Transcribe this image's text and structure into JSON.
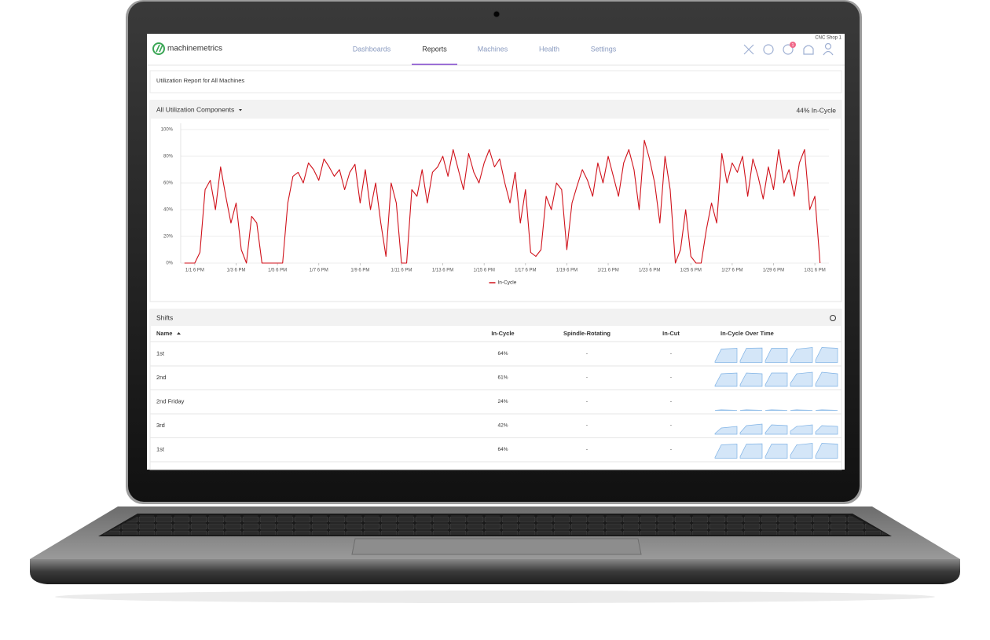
{
  "header": {
    "logo": "machinemetrics",
    "nav": [
      "Dashboards",
      "Reports",
      "Machines",
      "Health",
      "Settings"
    ],
    "account": "CNC Shop 1",
    "notifications": "1"
  },
  "report_title": "Utilization Report for All Machines",
  "panel": {
    "selector": "All Utilization Components",
    "summary": "44% In-Cycle"
  },
  "chart_data": {
    "type": "line",
    "x": [
      1.25,
      1.5,
      1.75,
      2,
      2.25,
      2.5,
      2.75,
      3,
      3.25,
      3.5,
      3.75,
      4,
      4.25,
      4.5,
      4.75,
      5,
      5.25,
      5.5,
      5.75,
      6,
      6.25,
      6.5,
      6.75,
      7,
      7.25,
      7.5,
      7.75,
      8,
      8.25,
      8.5,
      8.75,
      9,
      9.25,
      9.5,
      9.75,
      10,
      10.25,
      10.5,
      10.75,
      11,
      11.25,
      11.5,
      11.75,
      12,
      12.25,
      12.5,
      12.75,
      13,
      13.25,
      13.5,
      13.75,
      14,
      14.25,
      14.5,
      14.75,
      15,
      15.25,
      15.5,
      15.75,
      16,
      16.25,
      16.5,
      16.75,
      17,
      17.25,
      17.5,
      17.75,
      18,
      18.25,
      18.5,
      18.75,
      19,
      19.25,
      19.5,
      19.75,
      20,
      20.25,
      20.5,
      20.75,
      21,
      21.25,
      21.5,
      21.75,
      22,
      22.25,
      22.5,
      22.75,
      23,
      23.25,
      23.5,
      23.75,
      24,
      24.25,
      24.5,
      24.75,
      25,
      25.25,
      25.5,
      25.75,
      26,
      26.25,
      26.5,
      26.75,
      27,
      27.25,
      27.5,
      27.75,
      28,
      28.25,
      28.5,
      28.75,
      29,
      29.25,
      29.5,
      29.75,
      30,
      30.25,
      30.5,
      30.75,
      31,
      31.25,
      31.5,
      31.75,
      32
    ],
    "series": [
      {
        "name": "In-Cycle",
        "color": "#d0121b",
        "values": [
          0,
          0,
          0,
          8,
          55,
          62,
          40,
          72,
          50,
          30,
          45,
          10,
          0,
          35,
          30,
          0,
          0,
          0,
          0,
          0,
          45,
          65,
          68,
          60,
          75,
          70,
          62,
          78,
          72,
          65,
          70,
          55,
          68,
          74,
          45,
          70,
          40,
          60,
          30,
          5,
          60,
          45,
          0,
          0,
          55,
          50,
          70,
          45,
          68,
          72,
          80,
          65,
          85,
          70,
          55,
          82,
          68,
          60,
          75,
          85,
          72,
          78,
          60,
          45,
          68,
          30,
          55,
          8,
          5,
          10,
          50,
          40,
          60,
          55,
          10,
          45,
          58,
          70,
          62,
          50,
          75,
          60,
          80,
          65,
          50,
          75,
          85,
          70,
          40,
          92,
          78,
          60,
          30,
          80,
          55,
          0,
          10,
          40,
          5,
          0,
          0,
          25,
          45,
          30,
          82,
          60,
          75,
          68,
          80,
          50,
          78,
          65,
          48,
          72,
          55,
          85,
          60,
          70,
          50,
          75,
          85,
          40,
          50,
          0
        ]
      }
    ],
    "xlim": [
      1.07,
      32.43
    ],
    "ylim": [
      0,
      100
    ],
    "yticks": [
      {
        "value": 0,
        "label": "0%"
      },
      {
        "value": 20,
        "label": "20%"
      },
      {
        "value": 40,
        "label": "40%"
      },
      {
        "value": 60,
        "label": "60%"
      },
      {
        "value": 80,
        "label": "80%"
      },
      {
        "value": 100,
        "label": "100%"
      }
    ],
    "xticks": [
      {
        "value": 1.75,
        "label": "1/1 6 PM"
      },
      {
        "value": 3.75,
        "label": "1/3 6 PM"
      },
      {
        "value": 5.75,
        "label": "1/5 6 PM"
      },
      {
        "value": 7.75,
        "label": "1/7 6 PM"
      },
      {
        "value": 9.75,
        "label": "1/9 6 PM"
      },
      {
        "value": 11.75,
        "label": "1/11 6 PM"
      },
      {
        "value": 13.75,
        "label": "1/13 6 PM"
      },
      {
        "value": 15.75,
        "label": "1/15 6 PM"
      },
      {
        "value": 17.75,
        "label": "1/17 6 PM"
      },
      {
        "value": 19.75,
        "label": "1/19 6 PM"
      },
      {
        "value": 21.75,
        "label": "1/21 6 PM"
      },
      {
        "value": 23.75,
        "label": "1/23 6 PM"
      },
      {
        "value": 25.75,
        "label": "1/25 6 PM"
      },
      {
        "value": 27.75,
        "label": "1/27 6 PM"
      },
      {
        "value": 29.75,
        "label": "1/29 6 PM"
      },
      {
        "value": 31.75,
        "label": "1/31 6 PM"
      }
    ],
    "grid": true,
    "legend": "bottom"
  },
  "shifts": {
    "title": "Shifts",
    "columns": [
      "Name",
      "In-Cycle",
      "Spindle-Rotating",
      "In-Cut",
      "In-Cycle Over Time"
    ],
    "rows": [
      [
        "1st",
        "64%",
        "-",
        "-"
      ],
      [
        "2nd",
        "61%",
        "-",
        "-"
      ],
      [
        "2nd Friday",
        "24%",
        "-",
        "-"
      ],
      [
        "3rd",
        "42%",
        "-",
        "-"
      ],
      [
        "1st",
        "64%",
        "-",
        "-"
      ]
    ],
    "trends": [
      [
        5,
        85,
        90,
        10,
        90,
        92,
        10,
        90,
        90,
        20,
        85,
        95,
        15,
        95,
        90
      ],
      [
        5,
        80,
        85,
        10,
        85,
        80,
        10,
        85,
        85,
        20,
        80,
        90,
        15,
        90,
        80
      ],
      [
        0,
        3,
        0,
        0,
        3,
        0,
        0,
        3,
        0,
        0,
        3,
        0,
        0,
        3,
        0
      ],
      [
        5,
        40,
        50,
        10,
        55,
        65,
        10,
        60,
        55,
        20,
        50,
        60,
        15,
        55,
        50
      ],
      [
        5,
        85,
        90,
        10,
        90,
        92,
        10,
        90,
        90,
        20,
        85,
        95,
        15,
        95,
        90
      ]
    ]
  }
}
